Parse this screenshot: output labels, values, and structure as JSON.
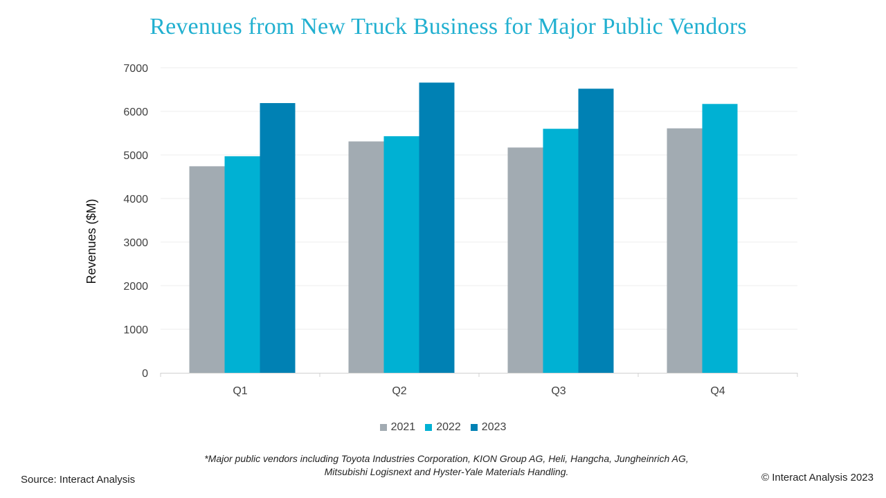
{
  "title": "Revenues from New Truck Business for Major Public Vendors",
  "chart_data": {
    "type": "bar",
    "title": "Revenues from New Truck Business for Major Public Vendors",
    "xlabel": "",
    "ylabel": "Revenues ($M)",
    "categories": [
      "Q1",
      "Q2",
      "Q3",
      "Q4"
    ],
    "y_ticks": [
      "0",
      "1000",
      "2000",
      "3000",
      "4000",
      "5000",
      "6000",
      "7000"
    ],
    "ylim": [
      0,
      7000
    ],
    "grid": true,
    "legend_position": "bottom",
    "series": [
      {
        "name": "2021",
        "color": "#a2abb2",
        "values": [
          4740,
          5310,
          5170,
          5610
        ]
      },
      {
        "name": "2022",
        "color": "#00b1d3",
        "values": [
          4970,
          5430,
          5600,
          6170
        ]
      },
      {
        "name": "2023",
        "color": "#0081b4",
        "values": [
          6190,
          6660,
          6520,
          null
        ]
      }
    ]
  },
  "footnote": {
    "line1": "*Major public vendors including Toyota Industries Corporation, KION Group AG, Heli, Hangcha, Jungheinrich AG,",
    "line2": "Mitsubishi Logisnext and Hyster-Yale Materials Handling."
  },
  "source": "Source: Interact Analysis",
  "copyright": "© Interact Analysis 2023"
}
